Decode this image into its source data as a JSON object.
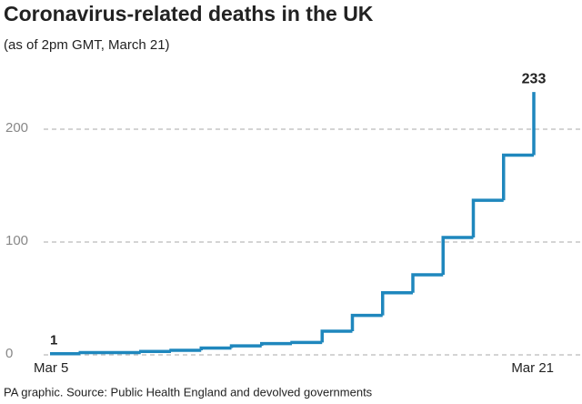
{
  "chart_data": {
    "type": "step",
    "title": "Coronavirus-related deaths in the UK",
    "subtitle": "(as of 2pm GMT, March 21)",
    "source": "PA graphic. Source: Public Health England and devolved governments",
    "categories": [
      "Mar 5",
      null,
      null,
      null,
      null,
      null,
      null,
      null,
      null,
      null,
      null,
      null,
      null,
      null,
      null,
      null,
      "Mar 21"
    ],
    "values": [
      1,
      2,
      2,
      3,
      4,
      6,
      8,
      10,
      11,
      21,
      35,
      55,
      71,
      104,
      137,
      177,
      233
    ],
    "color": "#1f87bd",
    "ylim": [
      0,
      250
    ],
    "yticks": [
      0,
      100,
      200
    ],
    "grid": true
  }
}
